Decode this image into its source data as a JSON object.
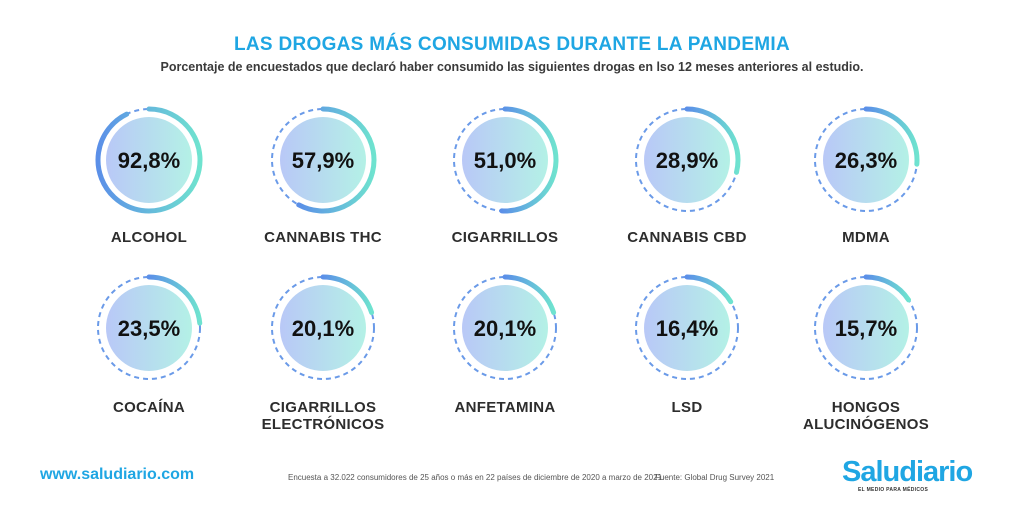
{
  "header": {
    "title": "LAS DROGAS MÁS CONSUMIDAS DURANTE LA PANDEMIA",
    "subtitle": "Porcentaje de encuestados que declaró haber consumido las siguientes drogas en lso 12 meses anteriores al estudio."
  },
  "chart_data": {
    "type": "radial-progress",
    "unit": "%",
    "items": [
      {
        "label": "ALCOHOL",
        "value": 92.8,
        "display": "92,8%"
      },
      {
        "label": "CANNABIS THC",
        "value": 57.9,
        "display": "57,9%"
      },
      {
        "label": "CIGARRILLOS",
        "value": 51.0,
        "display": "51,0%"
      },
      {
        "label": "CANNABIS CBD",
        "value": 28.9,
        "display": "28,9%"
      },
      {
        "label": "MDMA",
        "value": 26.3,
        "display": "26,3%"
      },
      {
        "label": "COCAÍNA",
        "value": 23.5,
        "display": "23,5%"
      },
      {
        "label": "CIGARRILLOS\nELECTRÓNICOS",
        "value": 20.1,
        "display": "20,1%"
      },
      {
        "label": "ANFETAMINA",
        "value": 20.1,
        "display": "20,1%"
      },
      {
        "label": "LSD",
        "value": 16.4,
        "display": "16,4%"
      },
      {
        "label": "HONGOS\nALUCINÓGENOS",
        "value": 15.7,
        "display": "15,7%"
      }
    ]
  },
  "footer": {
    "url": "www.saludiario.com",
    "note": "Encuesta a 32.022 consumidores de 25 años o más   en 22 países de diciembre de 2020 a marzo de 2021.",
    "source": "Fuente: Global Drug Survey 2021",
    "brand": "Saludiario",
    "tagline": "EL MEDIO PARA MÉDICOS"
  },
  "colors": {
    "accent": "#1fa6e3",
    "ring_start": "#5b8fe8",
    "ring_end": "#6fe3cf",
    "disc_start": "#b9c8f7",
    "disc_end": "#b4f1e6",
    "dash": "#6a9ae8"
  }
}
